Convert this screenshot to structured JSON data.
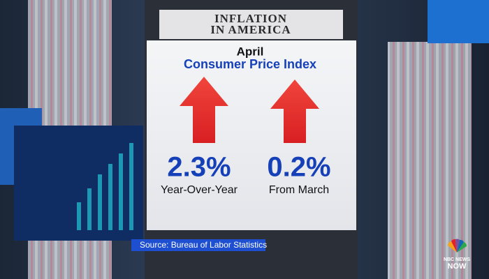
{
  "header": {
    "title_lines": [
      "INFLATION",
      "IN AMERICA"
    ]
  },
  "panel": {
    "month": "April",
    "title": "Consumer Price Index",
    "stats": [
      {
        "value": "2.3%",
        "label": "Year-Over-Year"
      },
      {
        "value": "0.2%",
        "label": "From March"
      }
    ]
  },
  "source": "Source: Bureau of Labor Statistics",
  "logo": {
    "lines": [
      "NBC NEWS",
      "NOW"
    ]
  }
}
